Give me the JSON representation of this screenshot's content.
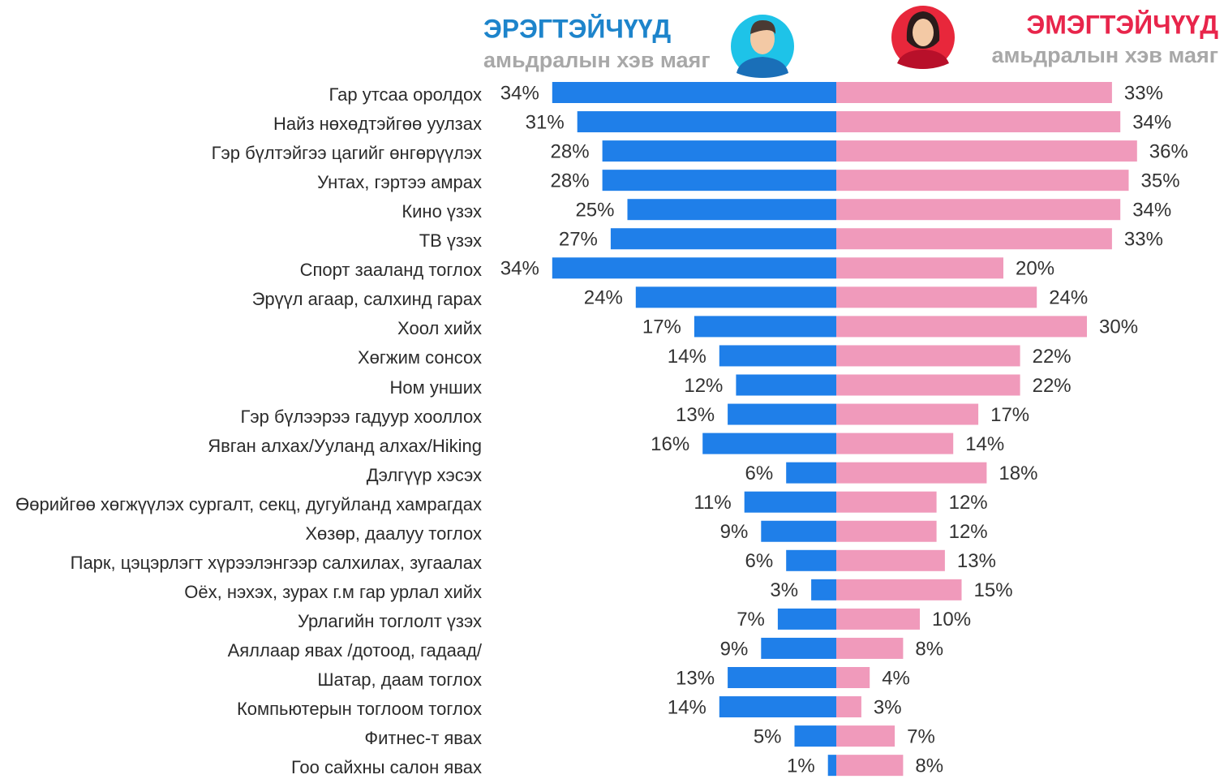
{
  "chart_data": {
    "type": "butterfly-bar",
    "left_title": "ЭРЭГТЭЙЧҮҮД",
    "left_subtitle": "амьдралын хэв маяг",
    "right_title": "ЭМЭГТЭЙЧҮҮД",
    "right_subtitle": "амьдралын хэв маяг",
    "categories": [
      "Гар утсаа оролдох",
      "Найз нөхөдтэйгөө уулзах",
      "Гэр бүлтэйгээ цагийг өнгөрүүлэх",
      "Унтах, гэртээ амрах",
      "Кино үзэх",
      "ТВ үзэх",
      "Спорт зааланд тоглох",
      "Эрүүл агаар, салхинд гарах",
      "Хоол хийх",
      "Хөгжим сонсох",
      "Ном унших",
      "Гэр бүлээрээ гадуур хооллох",
      "Явган алхах/Ууланд алхах/Hiking",
      "Дэлгүүр хэсэх",
      "Өөрийгөө хөгжүүлэх сургалт, секц, дугуйланд хамрагдах",
      "Хөзөр, даалуу тоглох",
      "Парк, цэцэрлэгт хүрээлэнгээр салхилах, зугаалах",
      "Оёх, нэхэх, зурах г.м гар урлал хийх",
      "Урлагийн тоглолт үзэх",
      "Аяллаар явах /дотоод, гадаад/",
      "Шатар, даам тоглох",
      "Компьютерын тоглоом тоглох",
      "Фитнес-т явах",
      "Гоо сайхны салон явах"
    ],
    "series": [
      {
        "name": "ЭРЭГТЭЙЧҮҮД",
        "color": "#1f7fe9",
        "values": [
          34,
          31,
          28,
          28,
          25,
          27,
          34,
          24,
          17,
          14,
          12,
          13,
          16,
          6,
          11,
          9,
          6,
          3,
          7,
          9,
          13,
          14,
          5,
          1
        ],
        "value_labels": [
          "34%",
          "31%",
          "28%",
          "28%",
          "25%",
          "27%",
          "34%",
          "24%",
          "17%",
          "14%",
          "12%",
          "13%",
          "16%",
          "6%",
          "11%",
          "9%",
          "6%",
          "3%",
          "7%",
          "9%",
          "13%",
          "14%",
          "5%",
          "1%"
        ]
      },
      {
        "name": "ЭМЭГТЭЙЧҮҮД",
        "color": "#f09abb",
        "values": [
          33,
          34,
          36,
          35,
          34,
          33,
          20,
          24,
          30,
          22,
          22,
          17,
          14,
          18,
          12,
          12,
          13,
          15,
          10,
          8,
          4,
          3,
          7,
          8
        ],
        "value_labels": [
          "33%",
          "34%",
          "36%",
          "35%",
          "34%",
          "33%",
          "20%",
          "24%",
          "30%",
          "22%",
          "22%",
          "17%",
          "14%",
          "18%",
          "12%",
          "12%",
          "13%",
          "15%",
          "10%",
          "8%",
          "4%",
          "3%",
          "7%",
          "8%"
        ]
      }
    ]
  }
}
